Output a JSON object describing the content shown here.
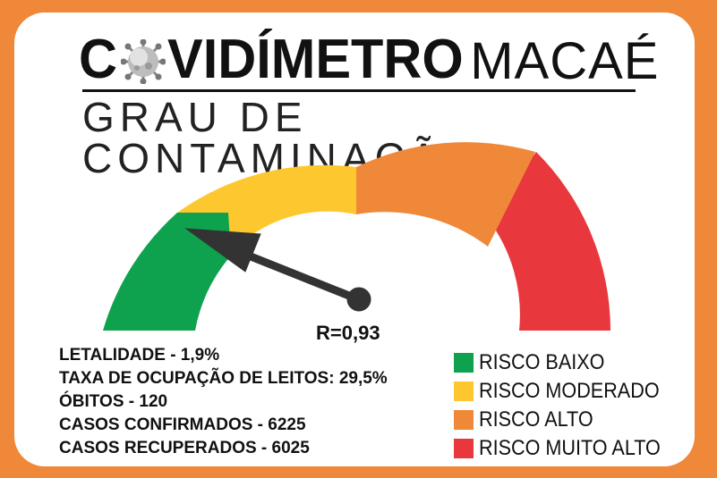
{
  "header": {
    "title_part1": "C",
    "title_part2": "VIDÍMETRO",
    "title_part3": "MACAÉ",
    "subtitle": "GRAU DE CONTAMINAÇÃO"
  },
  "gauge": {
    "reading_label": "R=0,93",
    "reading_value": 0.93,
    "needle_level_fraction": 0.15,
    "colors": {
      "low": "#0fa24e",
      "moderate": "#fdc82f",
      "high": "#f0883a",
      "very_high": "#e8383d"
    }
  },
  "stats": [
    "LETALIDADE - 1,9%",
    "TAXA DE OCUPAÇÃO DE LEITOS: 29,5%",
    "ÓBITOS - 120",
    "CASOS CONFIRMADOS - 6225",
    "CASOS RECUPERADOS - 6025"
  ],
  "legend": [
    {
      "label": "RISCO BAIXO",
      "color": "#0fa24e"
    },
    {
      "label": "RISCO MODERADO",
      "color": "#fdc82f"
    },
    {
      "label": "RISCO ALTO",
      "color": "#f0883a"
    },
    {
      "label": "RISCO MUITO ALTO",
      "color": "#e8383d"
    }
  ],
  "icons": {
    "title_o": "virus-icon"
  }
}
